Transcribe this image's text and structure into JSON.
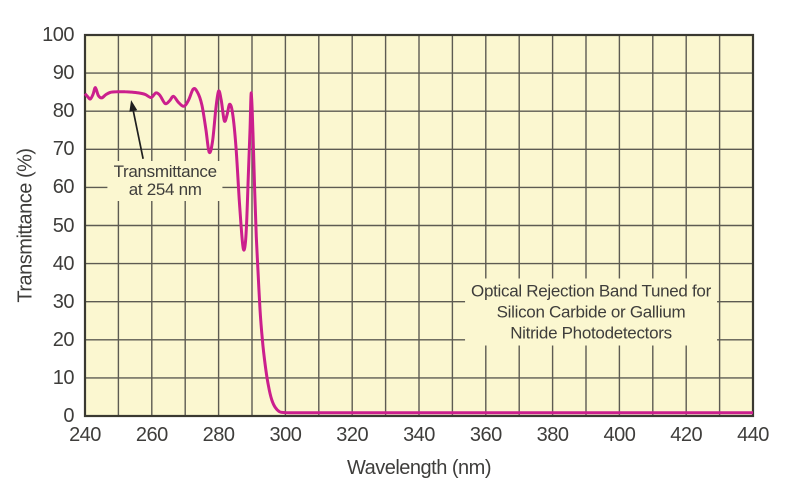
{
  "figure": {
    "background": "#ffffff",
    "plot_background": "#fbf7d0",
    "grid_color": "#5d5b52",
    "border_color": "#3a3931",
    "text_color": "#3e3d3b",
    "curve_color": "#cb1f8d",
    "arrow_color": "#1f1f1f"
  },
  "chart_data": {
    "type": "line",
    "title": "",
    "xlabel": "Wavelength (nm)",
    "ylabel": "Transmittance (%)",
    "xlim": [
      240,
      440
    ],
    "ylim": [
      0,
      100
    ],
    "x_tick_labels": [
      240,
      260,
      280,
      300,
      320,
      340,
      360,
      380,
      400,
      420,
      440
    ],
    "x_grid_step": 10,
    "y_tick_labels": [
      0,
      10,
      20,
      30,
      40,
      50,
      60,
      70,
      80,
      90,
      100
    ],
    "y_grid_step": 10,
    "grid": "on",
    "legend": "none",
    "series": [
      {
        "name": "uv-filter-transmittance",
        "color": "#cb1f8d",
        "points": [
          [
            240,
            84.6
          ],
          [
            240.8,
            83.8
          ],
          [
            241.6,
            83.2
          ],
          [
            242.4,
            84.4
          ],
          [
            243.1,
            86.2
          ],
          [
            244,
            84.1
          ],
          [
            245,
            83.5
          ],
          [
            246.2,
            84.3
          ],
          [
            247.5,
            84.9
          ],
          [
            249.5,
            85.1
          ],
          [
            252,
            85.1
          ],
          [
            254,
            85.0
          ],
          [
            256,
            84.8
          ],
          [
            258,
            84.4
          ],
          [
            259.8,
            83.6
          ],
          [
            261.2,
            84.8
          ],
          [
            262.4,
            84.2
          ],
          [
            264,
            82.0
          ],
          [
            265.3,
            82.7
          ],
          [
            266.5,
            83.9
          ],
          [
            268,
            82.3
          ],
          [
            269.6,
            81.3
          ],
          [
            271,
            82.9
          ],
          [
            272.4,
            85.8
          ],
          [
            273.6,
            85.1
          ],
          [
            275,
            81.6
          ],
          [
            276.2,
            75.2
          ],
          [
            277.2,
            69.2
          ],
          [
            278.2,
            72.2
          ],
          [
            279.2,
            80.8
          ],
          [
            280,
            85.3
          ],
          [
            280.8,
            82.8
          ],
          [
            281.7,
            77.5
          ],
          [
            282.5,
            78.9
          ],
          [
            283.3,
            81.8
          ],
          [
            284.2,
            79.4
          ],
          [
            285.2,
            70.5
          ],
          [
            286.2,
            56.5
          ],
          [
            287.1,
            46.0
          ],
          [
            287.7,
            43.7
          ],
          [
            288.3,
            49.0
          ],
          [
            288.9,
            63.0
          ],
          [
            289.4,
            75.0
          ],
          [
            289.8,
            84.8
          ],
          [
            290.3,
            74.0
          ],
          [
            290.8,
            59.0
          ],
          [
            291.3,
            47.0
          ],
          [
            291.8,
            38.0
          ],
          [
            292.4,
            28.0
          ],
          [
            293.1,
            20.0
          ],
          [
            294.0,
            13.0
          ],
          [
            294.9,
            8.0
          ],
          [
            295.9,
            4.3
          ],
          [
            297.0,
            2.2
          ],
          [
            298.3,
            1.1
          ],
          [
            300,
            0.9
          ],
          [
            305,
            0.85
          ],
          [
            320,
            0.85
          ],
          [
            350,
            0.85
          ],
          [
            390,
            0.85
          ],
          [
            440,
            0.85
          ]
        ]
      }
    ],
    "annotations": [
      {
        "id": "transmittance-254",
        "lines": [
          "Transmittance",
          "at 254 nm"
        ],
        "anchor_x": 264.0,
        "anchor_y": 61.8,
        "line_height": 18,
        "arrow": {
          "from_x": 257.4,
          "from_y": 67.5,
          "to_x": 253.8,
          "to_y": 82.9
        }
      },
      {
        "id": "rejection-band",
        "lines": [
          "Optical Rejection Band Tuned for",
          "Silicon Carbide or Gallium",
          "Nitride Photodetectors"
        ],
        "anchor_x": 391.5,
        "anchor_y": 27.2,
        "line_height": 21
      }
    ]
  }
}
